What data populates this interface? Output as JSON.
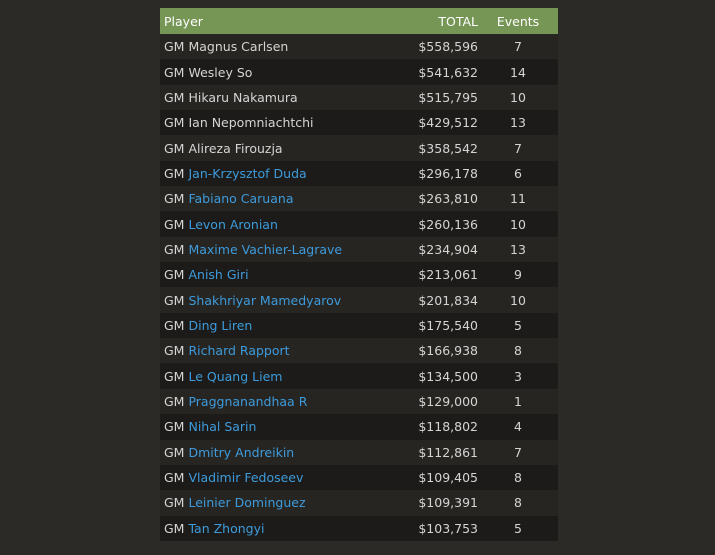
{
  "colors": {
    "header": "#769656",
    "link": "#3d9bdc",
    "background": "#2b2a27"
  },
  "headers": {
    "player": "Player",
    "total": "TOTAL",
    "events": "Events"
  },
  "rows": [
    {
      "title": "GM",
      "name": "Magnus Carlsen",
      "link": false,
      "total": "$558,596",
      "events": "7"
    },
    {
      "title": "GM",
      "name": "Wesley So",
      "link": false,
      "total": "$541,632",
      "events": "14"
    },
    {
      "title": "GM",
      "name": "Hikaru Nakamura",
      "link": false,
      "total": "$515,795",
      "events": "10"
    },
    {
      "title": "GM",
      "name": "Ian Nepomniachtchi",
      "link": false,
      "total": "$429,512",
      "events": "13"
    },
    {
      "title": "GM",
      "name": "Alireza Firouzja",
      "link": false,
      "total": "$358,542",
      "events": "7"
    },
    {
      "title": "GM",
      "name": "Jan-Krzysztof Duda",
      "link": true,
      "total": "$296,178",
      "events": "6"
    },
    {
      "title": "GM",
      "name": "Fabiano Caruana",
      "link": true,
      "total": "$263,810",
      "events": "11"
    },
    {
      "title": "GM",
      "name": "Levon Aronian",
      "link": true,
      "total": "$260,136",
      "events": "10"
    },
    {
      "title": "GM",
      "name": "Maxime Vachier-Lagrave",
      "link": true,
      "total": "$234,904",
      "events": "13"
    },
    {
      "title": "GM",
      "name": "Anish Giri",
      "link": true,
      "total": "$213,061",
      "events": "9"
    },
    {
      "title": "GM",
      "name": "Shakhriyar Mamedyarov",
      "link": true,
      "total": "$201,834",
      "events": "10"
    },
    {
      "title": "GM",
      "name": "Ding Liren",
      "link": true,
      "total": "$175,540",
      "events": "5"
    },
    {
      "title": "GM",
      "name": "Richard Rapport",
      "link": true,
      "total": "$166,938",
      "events": "8"
    },
    {
      "title": "GM",
      "name": "Le Quang Liem",
      "link": true,
      "total": "$134,500",
      "events": "3"
    },
    {
      "title": "GM",
      "name": "Praggnanandhaa R",
      "link": true,
      "total": "$129,000",
      "events": "1"
    },
    {
      "title": "GM",
      "name": "Nihal Sarin",
      "link": true,
      "total": "$118,802",
      "events": "4"
    },
    {
      "title": "GM",
      "name": "Dmitry Andreikin",
      "link": true,
      "total": "$112,861",
      "events": "7"
    },
    {
      "title": "GM",
      "name": "Vladimir Fedoseev",
      "link": true,
      "total": "$109,405",
      "events": "8"
    },
    {
      "title": "GM",
      "name": "Leinier Dominguez",
      "link": true,
      "total": "$109,391",
      "events": "8"
    },
    {
      "title": "GM",
      "name": "Tan Zhongyi",
      "link": true,
      "total": "$103,753",
      "events": "5"
    }
  ]
}
